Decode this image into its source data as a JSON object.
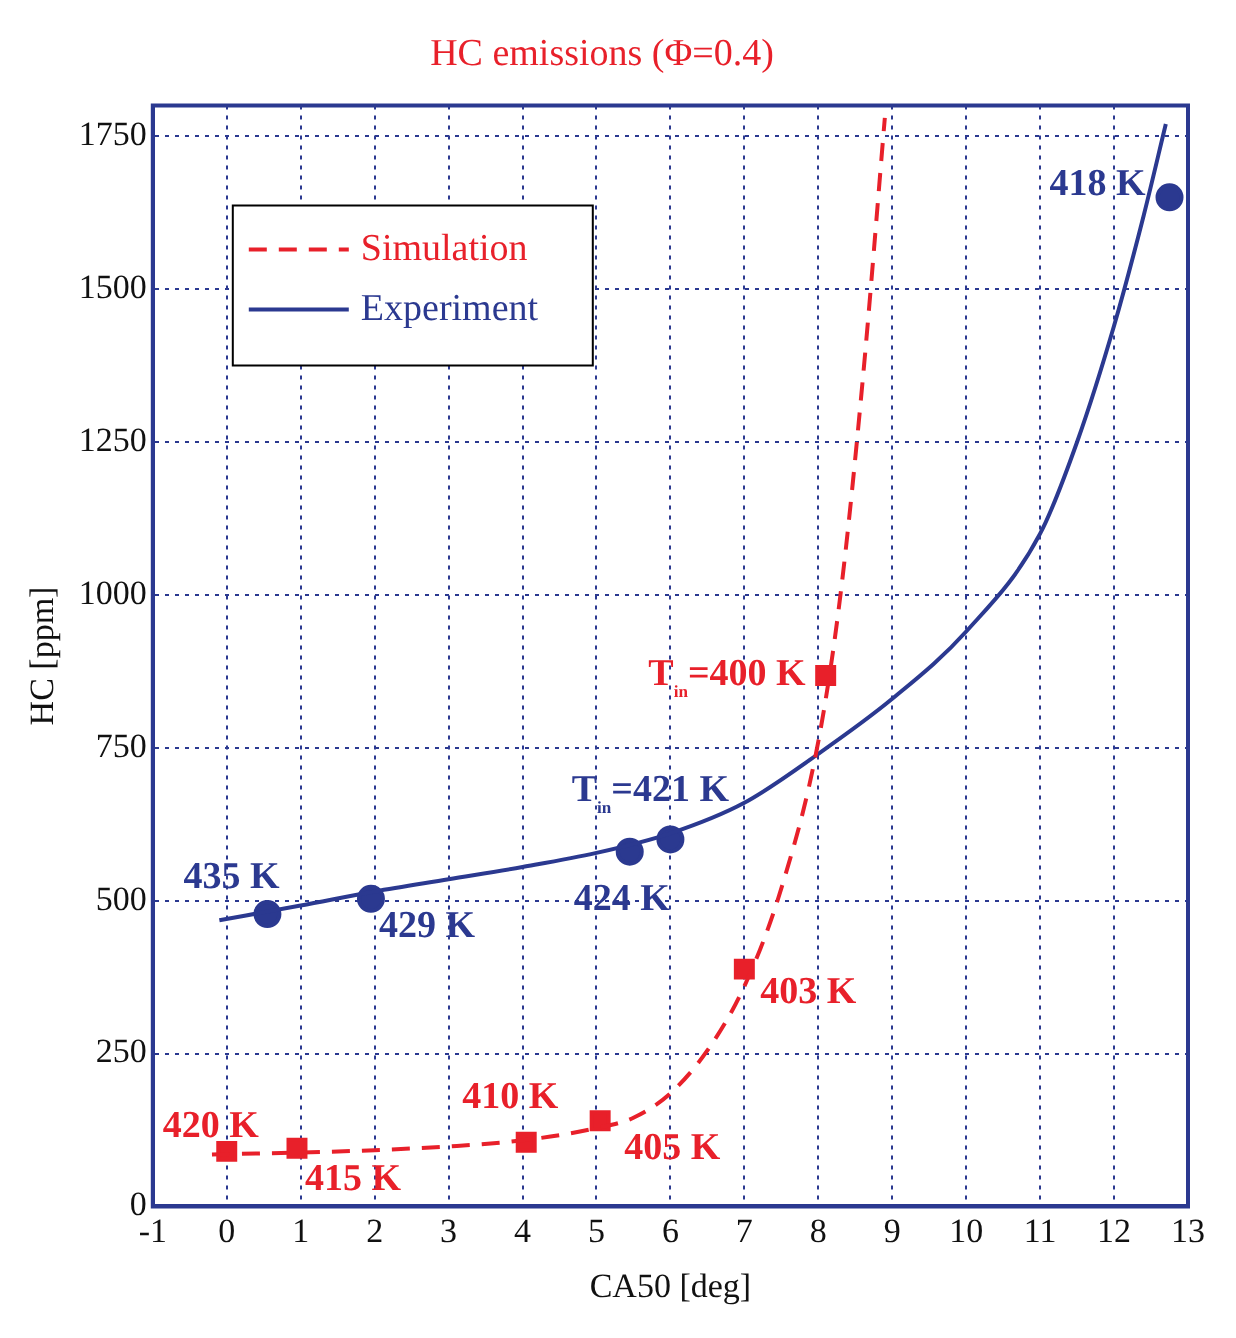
{
  "chart_data": {
    "type": "line",
    "title": "HC emissions (Φ=0.4)",
    "xlabel": "CA50 [deg]",
    "ylabel": "HC [ppm]",
    "xlim": [
      -1,
      13
    ],
    "xticks": [
      -1,
      0,
      1,
      2,
      3,
      4,
      5,
      6,
      7,
      8,
      9,
      10,
      11,
      12,
      13
    ],
    "ylim": [
      0,
      1800
    ],
    "yticks": [
      0,
      250,
      500,
      750,
      1000,
      1250,
      1500,
      1750
    ],
    "grid": true,
    "legend": "top left",
    "series": [
      {
        "name": "Simulation",
        "color": "#e8202a",
        "line_style": "dashed",
        "marker": "none",
        "x": [
          -0.2,
          1,
          2,
          3,
          4,
          5,
          5.5,
          6,
          6.5,
          7,
          7.5,
          8,
          8.3,
          8.6,
          8.9
        ],
        "values": [
          85,
          88,
          92,
          98,
          108,
          128,
          145,
          185,
          255,
          360,
          520,
          760,
          1000,
          1350,
          1780
        ]
      },
      {
        "type": "scatter",
        "color": "#e8202a",
        "marker": "square",
        "x": [
          0,
          0.95,
          4.05,
          5.05,
          7,
          8.1
        ],
        "values": [
          90,
          95,
          105,
          140,
          388,
          868
        ]
      },
      {
        "name": "Experiment",
        "color": "#2b3990",
        "line_style": "solid",
        "marker": "none",
        "x": [
          -0.1,
          1,
          2,
          3,
          4,
          5,
          6,
          7,
          8,
          9,
          10,
          11,
          11.5,
          12,
          12.4,
          12.7
        ],
        "values": [
          468,
          492,
          515,
          535,
          555,
          578,
          610,
          660,
          740,
          830,
          940,
          1100,
          1250,
          1440,
          1620,
          1770
        ]
      },
      {
        "type": "scatter",
        "color": "#2b3990",
        "marker": "circle",
        "x": [
          0.55,
          1.95,
          5.45,
          6,
          12.75
        ],
        "values": [
          478,
          503,
          580,
          600,
          1650
        ]
      }
    ],
    "annotations": [
      {
        "text": "420 K",
        "x": 0,
        "y": 90
      },
      {
        "text": "415 K",
        "x": 0.95,
        "y": 95
      },
      {
        "text": "410 K",
        "x": 4.05,
        "y": 105
      },
      {
        "text": "405 K",
        "x": 5.05,
        "y": 140
      },
      {
        "text": "403 K",
        "x": 7,
        "y": 388
      },
      {
        "text": "T$_{in}$=400 K",
        "x": 8.1,
        "y": 868
      },
      {
        "text": "435 K",
        "x": 0.55,
        "y": 478
      },
      {
        "text": "429 K",
        "x": 1.95,
        "y": 503
      },
      {
        "text": "424 K",
        "x": 5.45,
        "y": 580
      },
      {
        "text": "T$_{in}$=421 K",
        "x": 6,
        "y": 600
      },
      {
        "text": "418 K",
        "x": 12.75,
        "y": 1650
      }
    ]
  }
}
